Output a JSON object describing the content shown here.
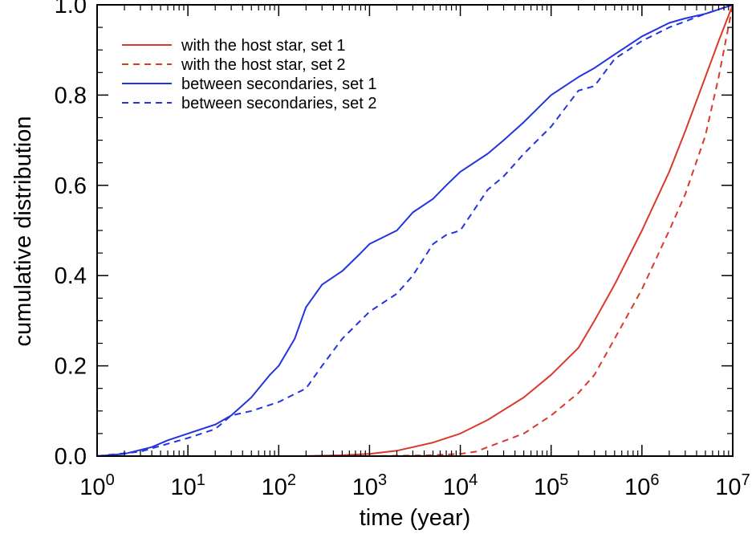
{
  "chart_data": {
    "type": "line",
    "xlabel": "time (year)",
    "ylabel": "cumulative distribution",
    "x_scale": "log",
    "xlim": [
      1,
      10000000
    ],
    "ylim": [
      0,
      1
    ],
    "x_ticks": [
      {
        "value": 1,
        "base": "10",
        "exp": "0"
      },
      {
        "value": 10,
        "base": "10",
        "exp": "1"
      },
      {
        "value": 100,
        "base": "10",
        "exp": "2"
      },
      {
        "value": 1000,
        "base": "10",
        "exp": "3"
      },
      {
        "value": 10000,
        "base": "10",
        "exp": "4"
      },
      {
        "value": 100000,
        "base": "10",
        "exp": "5"
      },
      {
        "value": 1000000,
        "base": "10",
        "exp": "6"
      },
      {
        "value": 10000000,
        "base": "10",
        "exp": "7"
      }
    ],
    "y_ticks": [
      {
        "value": 0.0,
        "label": "0.0"
      },
      {
        "value": 0.2,
        "label": "0.2"
      },
      {
        "value": 0.4,
        "label": "0.4"
      },
      {
        "value": 0.6,
        "label": "0.6"
      },
      {
        "value": 0.8,
        "label": "0.8"
      },
      {
        "value": 1.0,
        "label": "1.0"
      }
    ],
    "grid": false,
    "legend_position": "top-left",
    "series": [
      {
        "name": "with the host star, set 1",
        "color": "#d93a2b",
        "dash": "solid",
        "x": [
          180,
          500,
          1000,
          2000,
          3000,
          5000,
          10000,
          20000,
          50000,
          100000,
          200000,
          300000,
          500000,
          1000000,
          2000000,
          3000000,
          5000000,
          7000000,
          10000000
        ],
        "y": [
          0.0,
          0.002,
          0.005,
          0.012,
          0.02,
          0.03,
          0.05,
          0.08,
          0.13,
          0.18,
          0.24,
          0.3,
          0.38,
          0.5,
          0.63,
          0.72,
          0.84,
          0.92,
          1.0
        ]
      },
      {
        "name": "with the host star, set 2",
        "color": "#d93a2b",
        "dash": "dashed",
        "x": [
          1000,
          5000,
          10000,
          15000,
          20000,
          50000,
          100000,
          200000,
          300000,
          500000,
          1000000,
          2000000,
          3000000,
          5000000,
          7000000,
          10000000
        ],
        "y": [
          0.0,
          0.002,
          0.005,
          0.01,
          0.02,
          0.05,
          0.09,
          0.14,
          0.18,
          0.26,
          0.37,
          0.5,
          0.58,
          0.71,
          0.84,
          1.0
        ]
      },
      {
        "name": "between secondaries, set 1",
        "color": "#2433e0",
        "dash": "solid",
        "x": [
          1,
          2,
          4,
          6,
          10,
          20,
          30,
          50,
          80,
          100,
          150,
          200,
          300,
          500,
          800,
          1000,
          2000,
          3000,
          5000,
          7000,
          10000,
          20000,
          30000,
          50000,
          100000,
          200000,
          300000,
          500000,
          1000000,
          2000000,
          3000000,
          5000000,
          10000000
        ],
        "y": [
          0.0,
          0.005,
          0.02,
          0.035,
          0.05,
          0.07,
          0.09,
          0.13,
          0.18,
          0.2,
          0.26,
          0.33,
          0.38,
          0.41,
          0.45,
          0.47,
          0.5,
          0.54,
          0.57,
          0.6,
          0.63,
          0.67,
          0.7,
          0.74,
          0.8,
          0.84,
          0.86,
          0.89,
          0.93,
          0.96,
          0.97,
          0.98,
          1.0
        ]
      },
      {
        "name": "between secondaries, set 2",
        "color": "#2433e0",
        "dash": "dashed",
        "x": [
          1,
          3,
          10,
          20,
          30,
          50,
          100,
          200,
          300,
          500,
          1000,
          2000,
          3000,
          5000,
          7000,
          10000,
          20000,
          30000,
          50000,
          100000,
          200000,
          300000,
          500000,
          1000000,
          2000000,
          5000000,
          10000000
        ],
        "y": [
          0.0,
          0.01,
          0.04,
          0.06,
          0.09,
          0.1,
          0.12,
          0.15,
          0.2,
          0.26,
          0.32,
          0.36,
          0.4,
          0.47,
          0.49,
          0.5,
          0.59,
          0.62,
          0.67,
          0.73,
          0.81,
          0.82,
          0.88,
          0.92,
          0.95,
          0.98,
          1.0
        ]
      }
    ]
  }
}
